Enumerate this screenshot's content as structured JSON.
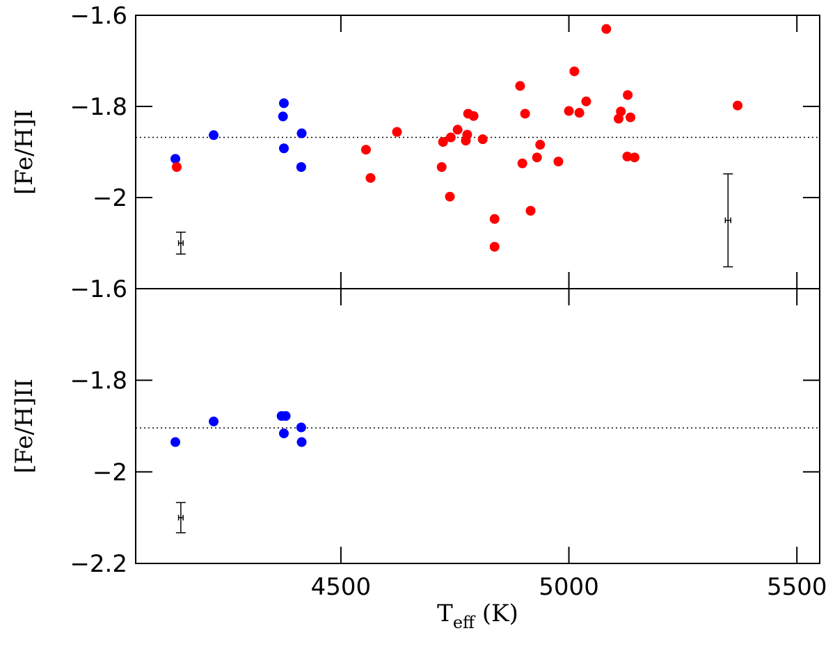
{
  "chart_data": [
    {
      "type": "scatter",
      "ylabel": "[Fe/H]I",
      "xlim": [
        4050,
        5550
      ],
      "xticks": [
        4500,
        5000,
        5500
      ],
      "x_tick_labels": false,
      "ylim": [
        -2.2,
        -1.6
      ],
      "yticks": [
        {
          "value": -2,
          "label": "−2"
        },
        {
          "value": -1.8,
          "label": "−1.8"
        },
        {
          "value": -1.6,
          "label": "−1.6"
        }
      ],
      "hline": -1.868,
      "series": [
        {
          "color": "#0000ff",
          "x": [
            4137,
            4221,
            4375,
            4373,
            4375,
            4414,
            4413
          ],
          "values": [
            -1.915,
            -1.863,
            -1.793,
            -1.822,
            -1.892,
            -1.859,
            -1.933
          ]
        },
        {
          "color": "#ff0000",
          "x": [
            4140,
            4555,
            4565,
            4623,
            4721,
            4724,
            4741,
            4739,
            4756,
            4774,
            4777,
            4779,
            4791,
            4811,
            4837,
            4837,
            4893,
            4904,
            4898,
            4916,
            4930,
            4937,
            4977,
            5000,
            5012,
            5023,
            5038,
            5082,
            5109,
            5114,
            5129,
            5128,
            5135,
            5144,
            5370
          ],
          "values": [
            -1.933,
            -1.895,
            -1.957,
            -1.856,
            -1.933,
            -1.878,
            -1.868,
            -1.998,
            -1.851,
            -1.875,
            -1.862,
            -1.816,
            -1.821,
            -1.872,
            -2.047,
            -2.108,
            -1.755,
            -1.816,
            -1.925,
            -2.029,
            -1.912,
            -1.884,
            -1.921,
            -1.81,
            -1.723,
            -1.814,
            -1.789,
            -1.63,
            -1.827,
            -1.811,
            -1.775,
            -1.91,
            -1.824,
            -1.912,
            -1.798
          ]
        }
      ],
      "errorbars": [
        {
          "x": 4149,
          "y": -2.1,
          "xerr": 5,
          "yerr": 0.024
        },
        {
          "x": 5349,
          "y": -2.05,
          "xerr": 6,
          "yerr": 0.102
        }
      ]
    },
    {
      "type": "scatter",
      "ylabel": "[Fe/H]II",
      "xlabel": [
        "T",
        "eff",
        " (K)"
      ],
      "xlim": [
        4050,
        5550
      ],
      "xticks": [
        4500,
        5000,
        5500
      ],
      "x_tick_labels": true,
      "ylim": [
        -2.2,
        -1.6
      ],
      "yticks": [
        {
          "value": -2.2,
          "label": "−2.2"
        },
        {
          "value": -2,
          "label": "−2"
        },
        {
          "value": -1.8,
          "label": "−1.8"
        },
        {
          "value": -1.6,
          "label": "−1.6"
        }
      ],
      "hline": -1.904,
      "series": [
        {
          "color": "#0000ff",
          "x": [
            4137,
            4221,
            4370,
            4379,
            4375,
            4413,
            4414
          ],
          "values": [
            -1.935,
            -1.89,
            -1.878,
            -1.878,
            -1.916,
            -1.903,
            -1.935
          ]
        }
      ],
      "errorbars": [
        {
          "x": 4149,
          "y": -2.1,
          "xerr": 5,
          "yerr": 0.033
        }
      ]
    }
  ]
}
